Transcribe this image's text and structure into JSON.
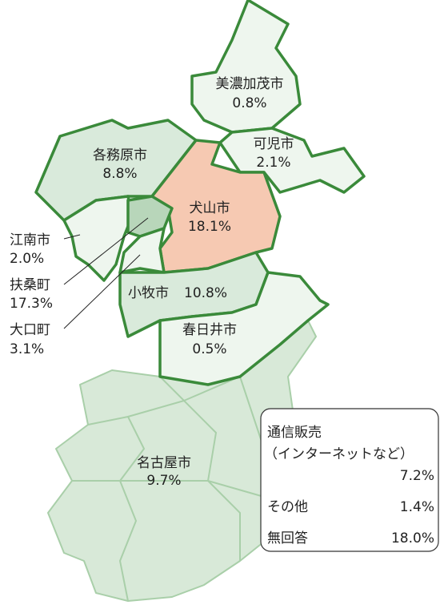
{
  "regions": [
    {
      "name": "美濃加茂市",
      "share": "0.8%"
    },
    {
      "name": "可児市",
      "share": "2.1%"
    },
    {
      "name": "各務原市",
      "share": "8.8%"
    },
    {
      "name": "犬山市",
      "share": "18.1%"
    },
    {
      "name": "江南市",
      "share": "2.0%"
    },
    {
      "name": "扶桑町",
      "share": "17.3%"
    },
    {
      "name": "大口町",
      "share": "3.1%"
    },
    {
      "name": "小牧市",
      "share": "10.8%"
    },
    {
      "name": "春日井市",
      "share": "0.5%"
    },
    {
      "name": "名古屋市",
      "share": "9.7%"
    }
  ],
  "others": {
    "mail_order": {
      "name": "通信販売",
      "note": "（インターネットなど）",
      "share": "7.2%"
    },
    "rows": [
      {
        "name": "その他",
        "share": "1.4%"
      },
      {
        "name": "無回答",
        "share": "18.0%"
      }
    ]
  }
}
